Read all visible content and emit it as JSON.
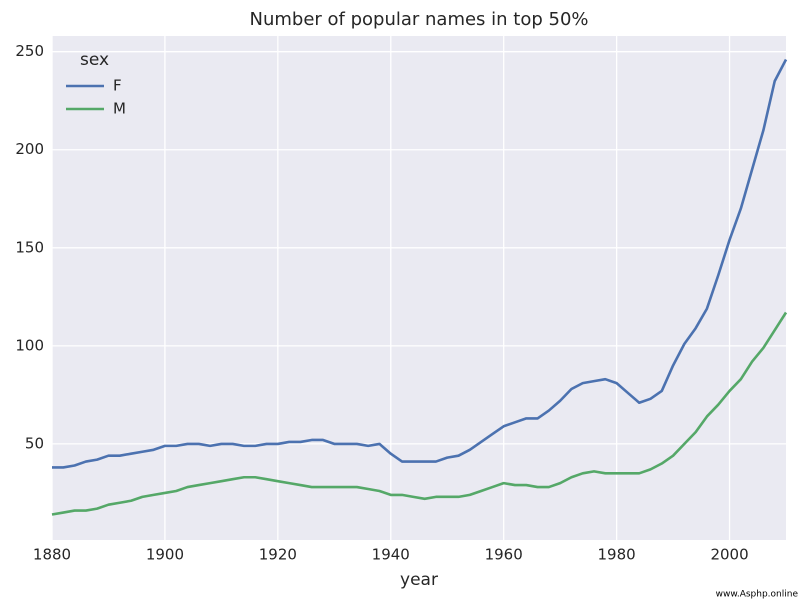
{
  "chart_data": {
    "type": "line",
    "title": "Number of popular names in top 50%",
    "x_label": "year",
    "legend_title": "sex",
    "legend": "upper left",
    "grid": true,
    "watermark": "www.Asphp.online",
    "x": [
      1880,
      1882,
      1884,
      1886,
      1888,
      1890,
      1892,
      1894,
      1896,
      1898,
      1900,
      1902,
      1904,
      1906,
      1908,
      1910,
      1912,
      1914,
      1916,
      1918,
      1920,
      1922,
      1924,
      1926,
      1928,
      1930,
      1932,
      1934,
      1936,
      1938,
      1940,
      1942,
      1944,
      1946,
      1948,
      1950,
      1952,
      1954,
      1956,
      1958,
      1960,
      1962,
      1964,
      1966,
      1968,
      1970,
      1972,
      1974,
      1976,
      1978,
      1980,
      1982,
      1984,
      1986,
      1988,
      1990,
      1992,
      1994,
      1996,
      1998,
      2000,
      2002,
      2004,
      2006,
      2008,
      2010
    ],
    "series": [
      {
        "name": "F",
        "color": "#4c72b0",
        "values": [
          38,
          38,
          39,
          41,
          42,
          44,
          44,
          45,
          46,
          47,
          49,
          49,
          50,
          50,
          49,
          50,
          50,
          49,
          49,
          50,
          50,
          51,
          51,
          52,
          52,
          50,
          50,
          50,
          49,
          50,
          45,
          41,
          41,
          41,
          41,
          43,
          44,
          47,
          51,
          55,
          59,
          61,
          63,
          63,
          67,
          72,
          78,
          81,
          82,
          83,
          81,
          76,
          71,
          73,
          77,
          90,
          101,
          109,
          119,
          136,
          154,
          170,
          190,
          210,
          235,
          246
        ]
      },
      {
        "name": "M",
        "color": "#55a868",
        "values": [
          14,
          15,
          16,
          16,
          17,
          19,
          20,
          21,
          23,
          24,
          25,
          26,
          28,
          29,
          30,
          31,
          32,
          33,
          33,
          32,
          31,
          30,
          29,
          28,
          28,
          28,
          28,
          28,
          27,
          26,
          24,
          24,
          23,
          22,
          23,
          23,
          23,
          24,
          26,
          28,
          30,
          29,
          29,
          28,
          28,
          30,
          33,
          35,
          36,
          35,
          35,
          35,
          35,
          37,
          40,
          44,
          50,
          56,
          64,
          70,
          77,
          83,
          92,
          99,
          108,
          117
        ]
      }
    ],
    "xlim": [
      1880,
      2010
    ],
    "xticks": [
      1880,
      1900,
      1920,
      1940,
      1960,
      1980,
      2000
    ],
    "ylim": [
      1,
      258
    ],
    "yticks": [
      50,
      100,
      150,
      200,
      250
    ]
  }
}
